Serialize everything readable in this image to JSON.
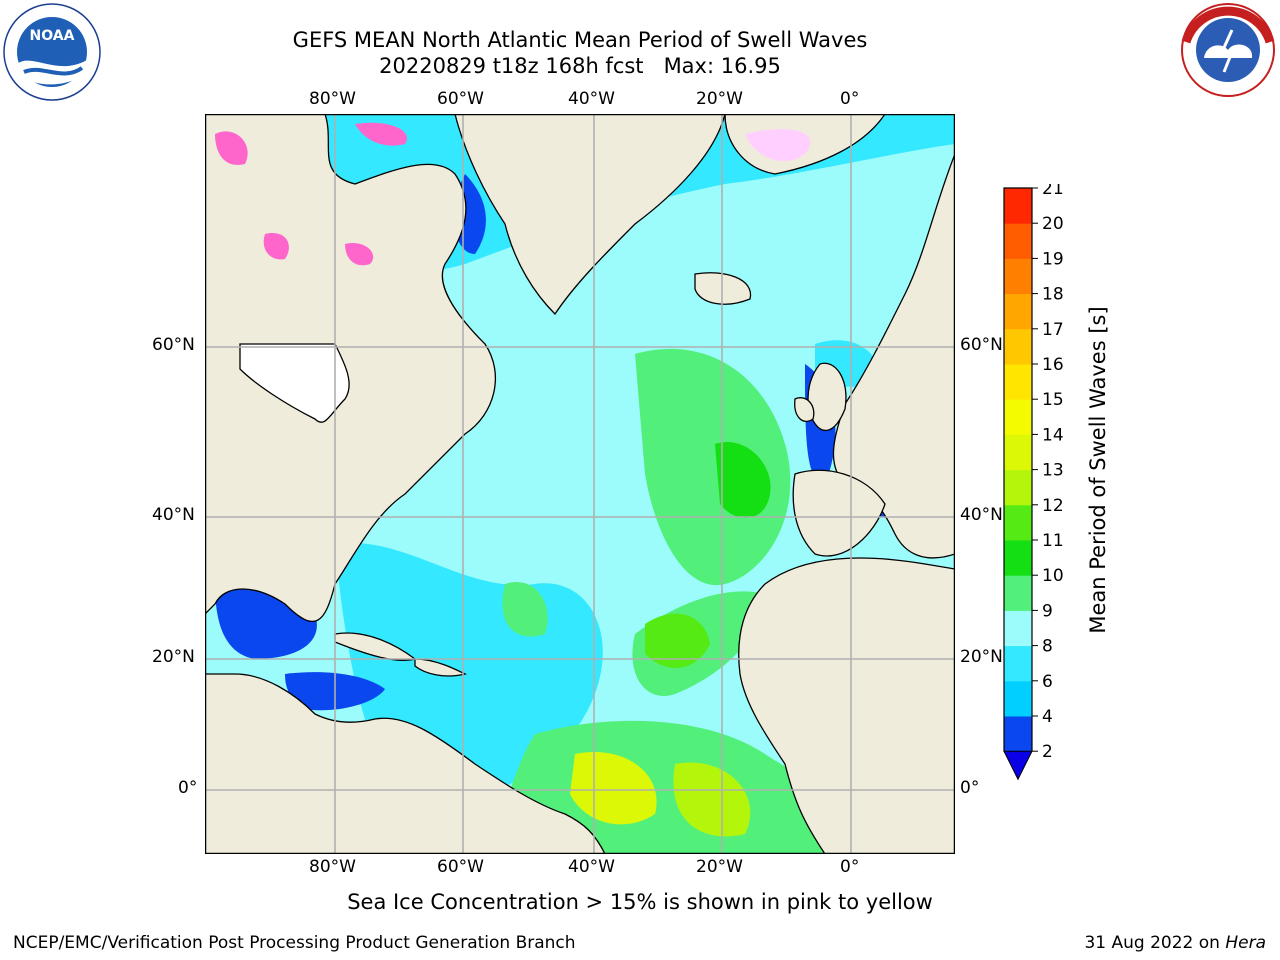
{
  "header": {
    "title_line1": "GEFS MEAN North Atlantic Mean Period of Swell Waves",
    "title_line2": "20220829 t18z 168h fcst   Max: 16.95"
  },
  "logos": {
    "noara": {
      "text": "NOAA",
      "ring": "NATIONAL OCEANIC AND ATMOSPHERIC ADMINISTRATION · U.S. DEPARTMENT OF COMMERCE"
    },
    "nws": {
      "ring": "NATIONAL WEATHER SERVICE"
    }
  },
  "map": {
    "lon_labels": [
      "80°W",
      "60°W",
      "40°W",
      "20°W",
      "0°"
    ],
    "lat_labels": [
      "60°N",
      "40°N",
      "20°N",
      "0°"
    ],
    "land_color": "#efecdc",
    "grid_color": "#b0b0b0"
  },
  "colorbar": {
    "label": "Mean Period of Swell Waves [s]",
    "ticks": [
      "2",
      "4",
      "6",
      "8",
      "9",
      "10",
      "11",
      "12",
      "13",
      "14",
      "15",
      "16",
      "17",
      "18",
      "19",
      "20",
      "21"
    ],
    "colors": [
      "#0a47ee",
      "#00cfff",
      "#33e8ff",
      "#9cfbfb",
      "#52f07a",
      "#13df13",
      "#55ea13",
      "#b4f50c",
      "#dcf807",
      "#f4fb00",
      "#ffe500",
      "#ffc700",
      "#ffa700",
      "#ff8000",
      "#ff5d00",
      "#ff2800"
    ],
    "under_color": "#0a00e6"
  },
  "note": "Sea Ice Concentration > 15% is shown in pink to yellow",
  "footer": {
    "left": "NCEP/EMC/Verification Post Processing Product Generation Branch",
    "right_prefix": "31 Aug 2022 on ",
    "right_italic": "Hera"
  }
}
